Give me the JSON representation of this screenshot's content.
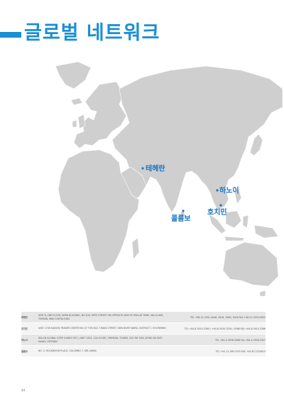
{
  "header": {
    "title": "글로벌 네트워크"
  },
  "map": {
    "land_color": "#cfcfcf",
    "marker_color": "#1a74c0",
    "cities": [
      {
        "id": "tehran",
        "label": "테헤란"
      },
      {
        "id": "hanoi",
        "label": "하노이"
      },
      {
        "id": "colombo",
        "label": "콜롬보"
      },
      {
        "id": "hochiminh",
        "label": "호치민"
      }
    ]
  },
  "offices": [
    {
      "name": "테헤란",
      "address": "UNIT 8, 2ND FLOOR, KIMIA BUILDING, NO.106, ATEFI STREET ON OPPOSITE SIDE OF MOLLAT PARK, VALI-E-ASR, TEHRAN, IRAN 1967815484",
      "contact": "TEL +98-21-2201-4946, 2918, 3489, 3926   FAX +98-21-2200-9953"
    },
    {
      "name": "호치민",
      "address": "UNIT 1708 SAIGON TRADER CENTER NO.37 TON DUC THANG STREET, BEN NGHE WARD, DISTRICT 1 HOCHIMINH",
      "contact": "TEL +84-8-3910-3260 / +84-8-3910-3334 / 3068   FAX +84-8-3910-3366"
    },
    {
      "name": "하노이",
      "address": "KOLON GLOBAL CORP. (HANOI OFC.) UNIT 1203, 12A FLOOR, ORIENTAL TOWER, 324 TAY SON, DONG DA DIST. HANOI, VIETNAM",
      "contact": "TEL +84-4-3936-3368   Fax +84-4-3936-3307"
    },
    {
      "name": "콜롬보",
      "address": "NO. 3, ROCKWOOD PLACE, COLOMBO 7, SRI LANKA",
      "contact": "TEL +94-11-269-7033   FAX +94-67-2225813"
    }
  ],
  "footer": {
    "page_number": "44"
  }
}
